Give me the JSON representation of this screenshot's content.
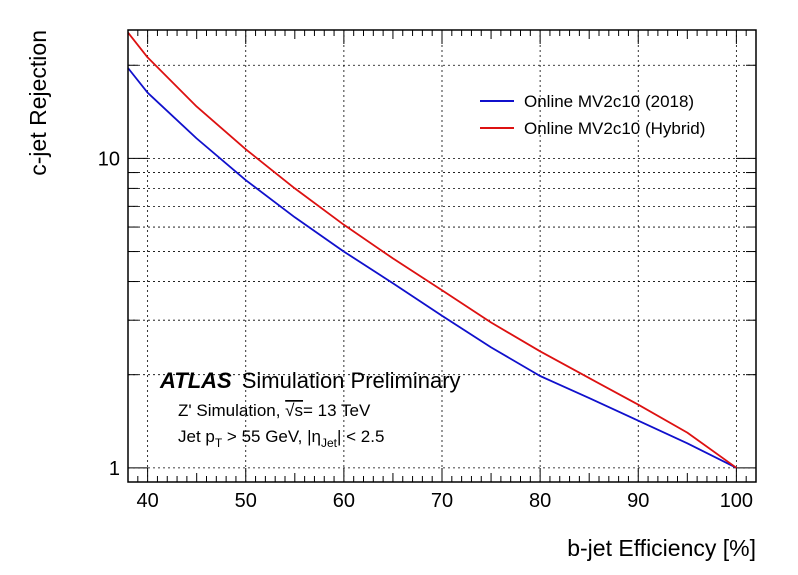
{
  "chart_data": {
    "type": "line",
    "xlabel": "b-jet Efficiency [%]",
    "ylabel": "c-jet Rejection",
    "xlim": [
      38,
      102
    ],
    "ylim": [
      0.9,
      26
    ],
    "yscale": "log",
    "grid": true,
    "legend_position": "top-right",
    "x_ticks": [
      "40",
      "50",
      "60",
      "70",
      "80",
      "90",
      "100"
    ],
    "y_ticks": [
      "1",
      "10"
    ],
    "series": [
      {
        "name": "Online MV2c10 (2018)",
        "color": "#1010cc",
        "points": [
          [
            38,
            19.6
          ],
          [
            40,
            16.3
          ],
          [
            45,
            11.6
          ],
          [
            50,
            8.5
          ],
          [
            55,
            6.45
          ],
          [
            60,
            5.0
          ],
          [
            65,
            3.95
          ],
          [
            70,
            3.1
          ],
          [
            75,
            2.45
          ],
          [
            80,
            1.98
          ],
          [
            85,
            1.68
          ],
          [
            90,
            1.42
          ],
          [
            95,
            1.2
          ],
          [
            100,
            1.0
          ]
        ]
      },
      {
        "name": "Online MV2c10 (Hybrid)",
        "color": "#dd1111",
        "points": [
          [
            38,
            25.5
          ],
          [
            40,
            21.2
          ],
          [
            45,
            14.7
          ],
          [
            50,
            10.7
          ],
          [
            55,
            8.0
          ],
          [
            60,
            6.1
          ],
          [
            65,
            4.75
          ],
          [
            70,
            3.75
          ],
          [
            75,
            2.95
          ],
          [
            80,
            2.38
          ],
          [
            85,
            1.95
          ],
          [
            90,
            1.6
          ],
          [
            95,
            1.3
          ],
          [
            100,
            1.0
          ]
        ]
      }
    ],
    "annotations": {
      "atlas": "ATLAS",
      "atlas_suffix": "Simulation Preliminary",
      "line1_prefix": "Z' Simulation, ",
      "line1_sqrt": "√s",
      "line1_suffix": "= 13 TeV",
      "line2_a": "Jet p",
      "line2_sub1": "T",
      "line2_b": " > 55 GeV, |η",
      "line2_sub2": "Jet",
      "line2_c": "| < 2.5"
    }
  }
}
